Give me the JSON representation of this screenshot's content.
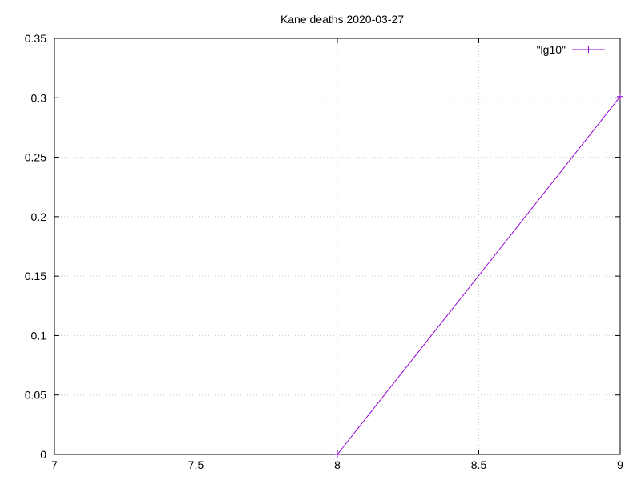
{
  "chart_data": {
    "type": "line",
    "title": "Kane deaths 2020-03-27",
    "xlabel": "",
    "ylabel": "",
    "xlim": [
      7,
      9
    ],
    "ylim": [
      0,
      0.35
    ],
    "x_ticks": [
      7,
      7.5,
      8,
      8.5,
      9
    ],
    "x_tick_labels": [
      "7",
      "7.5",
      "8",
      "8.5",
      "9"
    ],
    "y_ticks": [
      0,
      0.05,
      0.1,
      0.15,
      0.2,
      0.25,
      0.3,
      0.35
    ],
    "y_tick_labels": [
      "0",
      "0.05",
      "0.1",
      "0.15",
      "0.2",
      "0.25",
      "0.3",
      "0.35"
    ],
    "grid": true,
    "legend_position": "top-right",
    "series": [
      {
        "name": "\"lg10\"",
        "color": "#9400d3",
        "points": [
          {
            "x": 8,
            "y": 0
          },
          {
            "x": 9,
            "y": 0.301
          }
        ]
      }
    ]
  }
}
